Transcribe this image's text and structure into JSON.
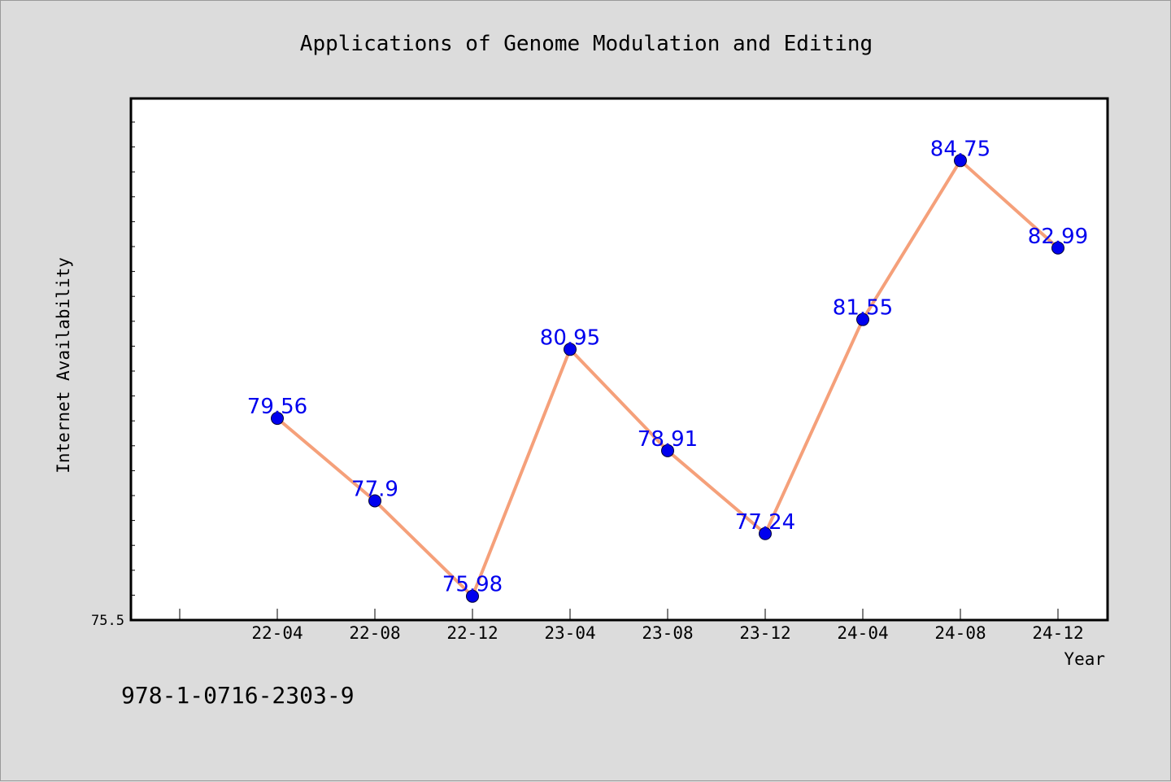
{
  "chart_data": {
    "type": "line",
    "title": "Applications of Genome Modulation and Editing",
    "xlabel": "Year",
    "ylabel": "Internet Availability",
    "categories": [
      "22-04",
      "22-08",
      "22-12",
      "23-04",
      "23-08",
      "23-12",
      "24-04",
      "24-08",
      "24-12"
    ],
    "series": [
      {
        "values": [
          79.56,
          77.9,
          75.98,
          80.95,
          78.91,
          77.24,
          81.55,
          84.75,
          82.99
        ]
      }
    ],
    "data_labels": [
      "79.56",
      "77.9",
      "75.98",
      "80.95",
      "78.91",
      "77.24",
      "81.55",
      "84.75",
      "82.99"
    ],
    "ylim": [
      75.5,
      86.0
    ],
    "yticks_labeled": [
      "75.5"
    ],
    "grid": false,
    "legend": false,
    "colors": {
      "line": "#f5a07a",
      "marker": "#0000ee",
      "label": "#0000ee",
      "plot_bg": "#ffffff",
      "page_bg": "#dcdcdc"
    }
  },
  "footer_text": "978-1-0716-2303-9"
}
